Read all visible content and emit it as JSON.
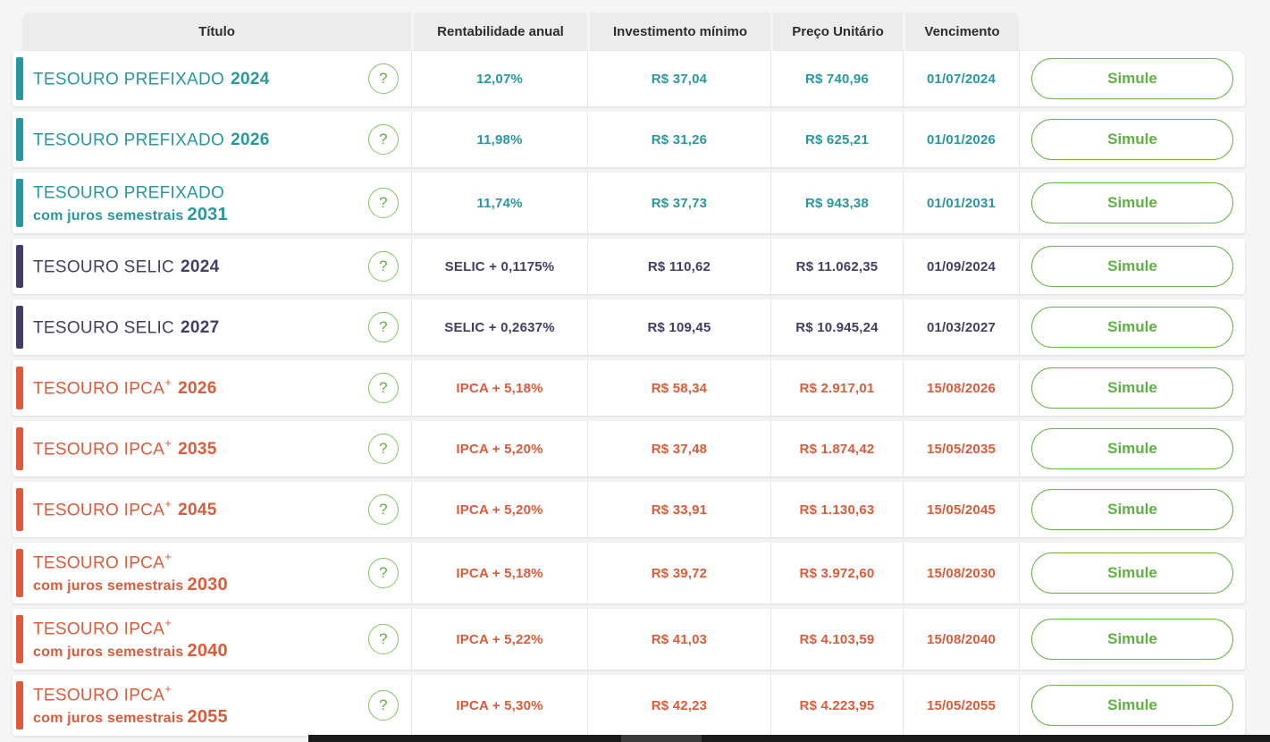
{
  "colors": {
    "prefixado": "#2798a0",
    "selic": "#453c67",
    "ipca": "#df5a38",
    "green": "#5cb340",
    "header_bg": "#ececec",
    "header_text": "#2d2d2d"
  },
  "table": {
    "columns": [
      "Título",
      "Rentabilidade anual",
      "Investimento mínimo",
      "Preço Unitário",
      "Vencimento"
    ],
    "help_icon": "?",
    "simulate_label": "Simule",
    "rows": [
      {
        "type": "prefixado",
        "name": "TESOURO PREFIXADO",
        "year": "2024",
        "rentabilidade": "12,07%",
        "investimento": "R$ 37,04",
        "preco": "R$ 740,96",
        "vencimento": "01/07/2024"
      },
      {
        "type": "prefixado",
        "name": "TESOURO PREFIXADO",
        "year": "2026",
        "rentabilidade": "11,98%",
        "investimento": "R$ 31,26",
        "preco": "R$ 625,21",
        "vencimento": "01/01/2026"
      },
      {
        "type": "prefixado",
        "name": "TESOURO PREFIXADO",
        "suffix": "com juros semestrais",
        "year": "2031",
        "rentabilidade": "11,74%",
        "investimento": "R$ 37,73",
        "preco": "R$ 943,38",
        "vencimento": "01/01/2031"
      },
      {
        "type": "selic",
        "name": "TESOURO SELIC",
        "year": "2024",
        "rentabilidade": "SELIC + 0,1175%",
        "investimento": "R$ 110,62",
        "preco": "R$ 11.062,35",
        "vencimento": "01/09/2024"
      },
      {
        "type": "selic",
        "name": "TESOURO SELIC",
        "year": "2027",
        "rentabilidade": "SELIC + 0,2637%",
        "investimento": "R$ 109,45",
        "preco": "R$ 10.945,24",
        "vencimento": "01/03/2027"
      },
      {
        "type": "ipca",
        "name": "TESOURO IPCA",
        "sup": "+",
        "year": "2026",
        "rentabilidade": "IPCA + 5,18%",
        "investimento": "R$ 58,34",
        "preco": "R$ 2.917,01",
        "vencimento": "15/08/2026"
      },
      {
        "type": "ipca",
        "name": "TESOURO IPCA",
        "sup": "+",
        "year": "2035",
        "rentabilidade": "IPCA + 5,20%",
        "investimento": "R$ 37,48",
        "preco": "R$ 1.874,42",
        "vencimento": "15/05/2035"
      },
      {
        "type": "ipca",
        "name": "TESOURO IPCA",
        "sup": "+",
        "year": "2045",
        "rentabilidade": "IPCA + 5,20%",
        "investimento": "R$ 33,91",
        "preco": "R$ 1.130,63",
        "vencimento": "15/05/2045"
      },
      {
        "type": "ipca",
        "name": "TESOURO IPCA",
        "sup": "+",
        "suffix": "com juros semestrais",
        "year": "2030",
        "rentabilidade": "IPCA + 5,18%",
        "investimento": "R$ 39,72",
        "preco": "R$ 3.972,60",
        "vencimento": "15/08/2030"
      },
      {
        "type": "ipca",
        "name": "TESOURO IPCA",
        "sup": "+",
        "suffix": "com juros semestrais",
        "year": "2040",
        "rentabilidade": "IPCA + 5,22%",
        "investimento": "R$ 41,03",
        "preco": "R$ 4.103,59",
        "vencimento": "15/08/2040"
      },
      {
        "type": "ipca",
        "name": "TESOURO IPCA",
        "sup": "+",
        "suffix": "com juros semestrais",
        "year": "2055",
        "rentabilidade": "IPCA + 5,30%",
        "investimento": "R$ 42,23",
        "preco": "R$ 4.223,95",
        "vencimento": "15/05/2055"
      }
    ]
  }
}
